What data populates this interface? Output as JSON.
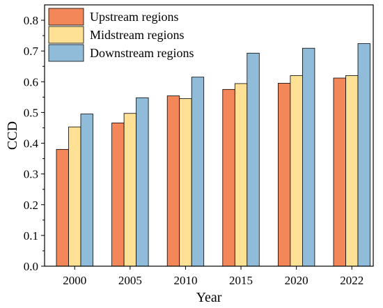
{
  "chart_data": {
    "type": "bar",
    "title": "",
    "xlabel": "Year",
    "ylabel": "CCD",
    "categories": [
      "2000",
      "2005",
      "2010",
      "2015",
      "2020",
      "2022"
    ],
    "ylim": [
      0,
      0.85
    ],
    "yticks": [
      "0.0",
      "0.1",
      "0.2",
      "0.3",
      "0.4",
      "0.5",
      "0.6",
      "0.7",
      "0.8"
    ],
    "grid": false,
    "legend_position": "top-left",
    "series": [
      {
        "name": "Upstream regions",
        "color": "#F4875A",
        "values": [
          0.38,
          0.466,
          0.554,
          0.575,
          0.595,
          0.612
        ]
      },
      {
        "name": "Midstream regions",
        "color": "#FFE195",
        "values": [
          0.453,
          0.497,
          0.545,
          0.594,
          0.62,
          0.62
        ]
      },
      {
        "name": "Downstream regions",
        "color": "#90BCD9",
        "values": [
          0.495,
          0.548,
          0.615,
          0.693,
          0.709,
          0.724
        ]
      }
    ]
  }
}
